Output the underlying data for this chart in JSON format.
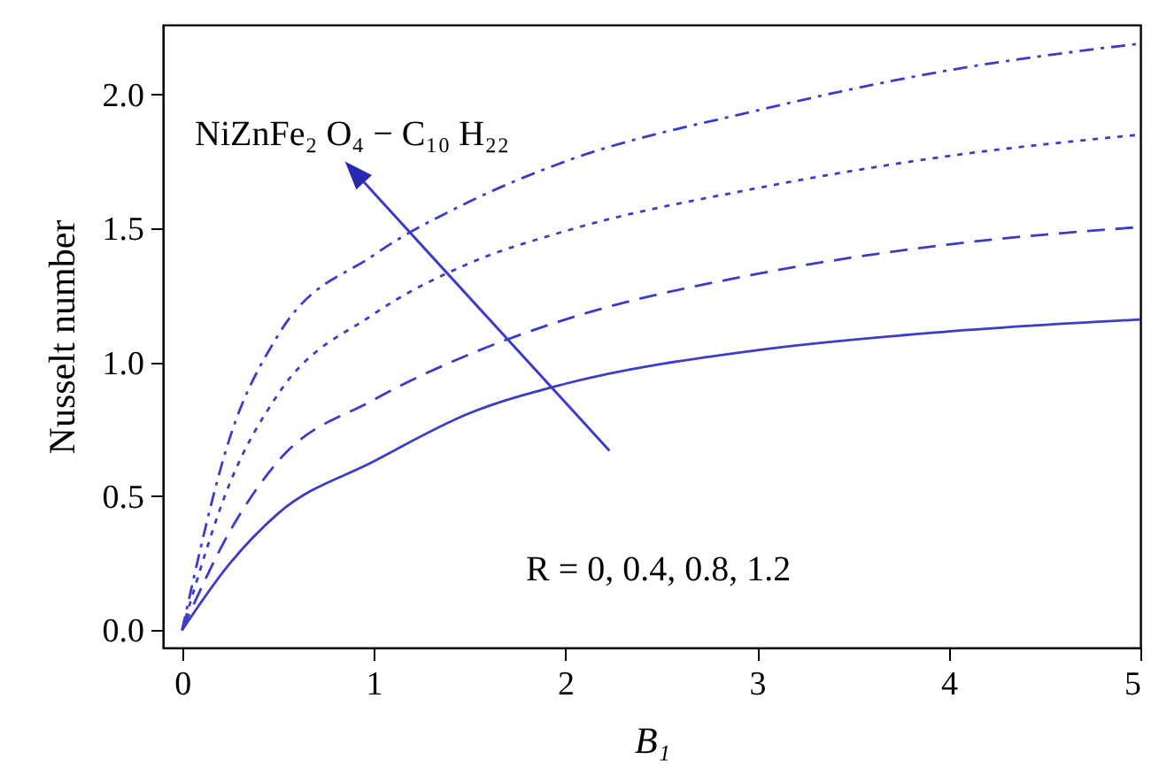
{
  "chart_data": {
    "type": "line",
    "xlabel": "B₁",
    "ylabel": "Nusselt number",
    "x": [
      0,
      0.25,
      0.5,
      1,
      1.5,
      2,
      3,
      4,
      5
    ],
    "series": [
      {
        "color": "#3c3cc8",
        "line_style": "solid",
        "values": [
          0,
          0.25,
          0.435,
          0.63,
          0.81,
          0.92,
          1.045,
          1.115,
          1.16
        ]
      },
      {
        "color": "#3c3cc8",
        "line_style": "dashed",
        "values": [
          0,
          0.37,
          0.63,
          0.86,
          1.03,
          1.16,
          1.33,
          1.44,
          1.505
        ]
      },
      {
        "color": "#3c3cc8",
        "line_style": "dotted",
        "values": [
          0,
          0.55,
          0.88,
          1.18,
          1.37,
          1.49,
          1.65,
          1.77,
          1.85
        ]
      },
      {
        "color": "#3c3cc8",
        "line_style": "dashdot",
        "values": [
          0,
          0.72,
          1.1,
          1.4,
          1.6,
          1.75,
          1.94,
          2.09,
          2.19
        ]
      }
    ],
    "xlim": [
      -0.1,
      5
    ],
    "ylim": [
      -0.065,
      2.26
    ],
    "xticks": [
      0,
      1,
      2,
      3,
      4,
      5
    ],
    "yticks": [
      {
        "value": 0,
        "label": "0.0"
      },
      {
        "value": 0.5,
        "label": "0.5"
      },
      {
        "value": 1,
        "label": "1.0"
      },
      {
        "value": 1.5,
        "label": "1.5"
      },
      {
        "value": 2,
        "label": "2.0"
      }
    ],
    "annotations": [
      "NiZnFe₂ O₄ − C₁₀ H₂₂",
      "R = 0, 0.4, 0.8, 1.2"
    ],
    "grid": false,
    "marker": "none"
  }
}
